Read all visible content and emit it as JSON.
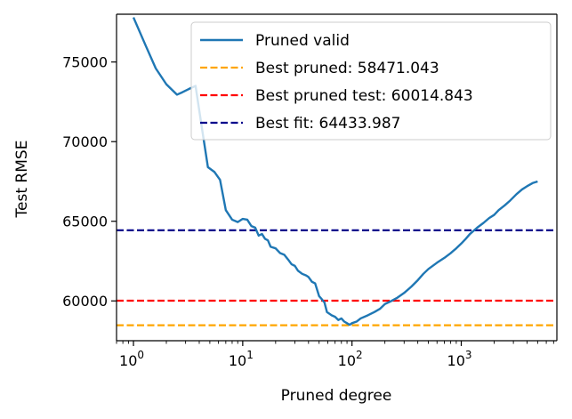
{
  "chart_data": {
    "type": "line",
    "xscale": "log",
    "xlabel": "Pruned degree",
    "ylabel": "Test RMSE",
    "xlim": [
      0.7,
      7500
    ],
    "ylim": [
      57500,
      78000
    ],
    "x_ticks": [
      {
        "value": 1,
        "base": "10",
        "exp": "0"
      },
      {
        "value": 10,
        "base": "10",
        "exp": "1"
      },
      {
        "value": 100,
        "base": "10",
        "exp": "2"
      },
      {
        "value": 1000,
        "base": "10",
        "exp": "3"
      }
    ],
    "y_ticks": [
      {
        "value": 60000,
        "label": "60000"
      },
      {
        "value": 65000,
        "label": "65000"
      },
      {
        "value": 70000,
        "label": "70000"
      },
      {
        "value": 75000,
        "label": "75000"
      }
    ],
    "legend_position": "top-right",
    "series": [
      {
        "name": "Pruned valid",
        "color": "#1f77b4",
        "style": "solid",
        "x": [
          1,
          1.3,
          1.6,
          2,
          2.5,
          2.8,
          3.2,
          3.7,
          4.2,
          4.8,
          5.5,
          6.2,
          7,
          8,
          9,
          10,
          11,
          12,
          13,
          14,
          15,
          16,
          17,
          18,
          20,
          22,
          24,
          26,
          28,
          30,
          32,
          35,
          38,
          40,
          43,
          46,
          50,
          53,
          56,
          59,
          62,
          65,
          70,
          75,
          80,
          85,
          90,
          95,
          100,
          110,
          120,
          140,
          160,
          180,
          200,
          230,
          260,
          300,
          350,
          400,
          450,
          500,
          600,
          700,
          800,
          900,
          1000,
          1100,
          1200,
          1400,
          1600,
          1800,
          2000,
          2200,
          2500,
          2800,
          3200,
          3600,
          4000,
          4500,
          5000
        ],
        "y": [
          77800,
          76000,
          74600,
          73600,
          72950,
          73100,
          73300,
          73500,
          71000,
          68400,
          68100,
          67600,
          65700,
          65100,
          64950,
          65150,
          65100,
          64700,
          64600,
          64100,
          64200,
          63900,
          63800,
          63400,
          63300,
          63000,
          62900,
          62600,
          62300,
          62200,
          61900,
          61700,
          61600,
          61500,
          61200,
          61100,
          60300,
          60100,
          59900,
          59300,
          59200,
          59100,
          59000,
          58800,
          58900,
          58700,
          58600,
          58500,
          58600,
          58700,
          58900,
          59100,
          59300,
          59500,
          59800,
          60000,
          60200,
          60500,
          60900,
          61300,
          61700,
          62000,
          62400,
          62700,
          63000,
          63300,
          63600,
          63900,
          64200,
          64600,
          64900,
          65200,
          65400,
          65700,
          66000,
          66300,
          66700,
          67000,
          67200,
          67400,
          67500
        ]
      },
      {
        "name": "Best pruned: 58471.043",
        "color": "#ffa500",
        "style": "dashed",
        "y_const": 58471.043
      },
      {
        "name": "Best pruned test: 60014.843",
        "color": "#ff0000",
        "style": "dashed",
        "y_const": 60014.843
      },
      {
        "name": "Best fit: 64433.987",
        "color": "#00008b",
        "style": "dashed",
        "y_const": 64433.987
      }
    ]
  }
}
